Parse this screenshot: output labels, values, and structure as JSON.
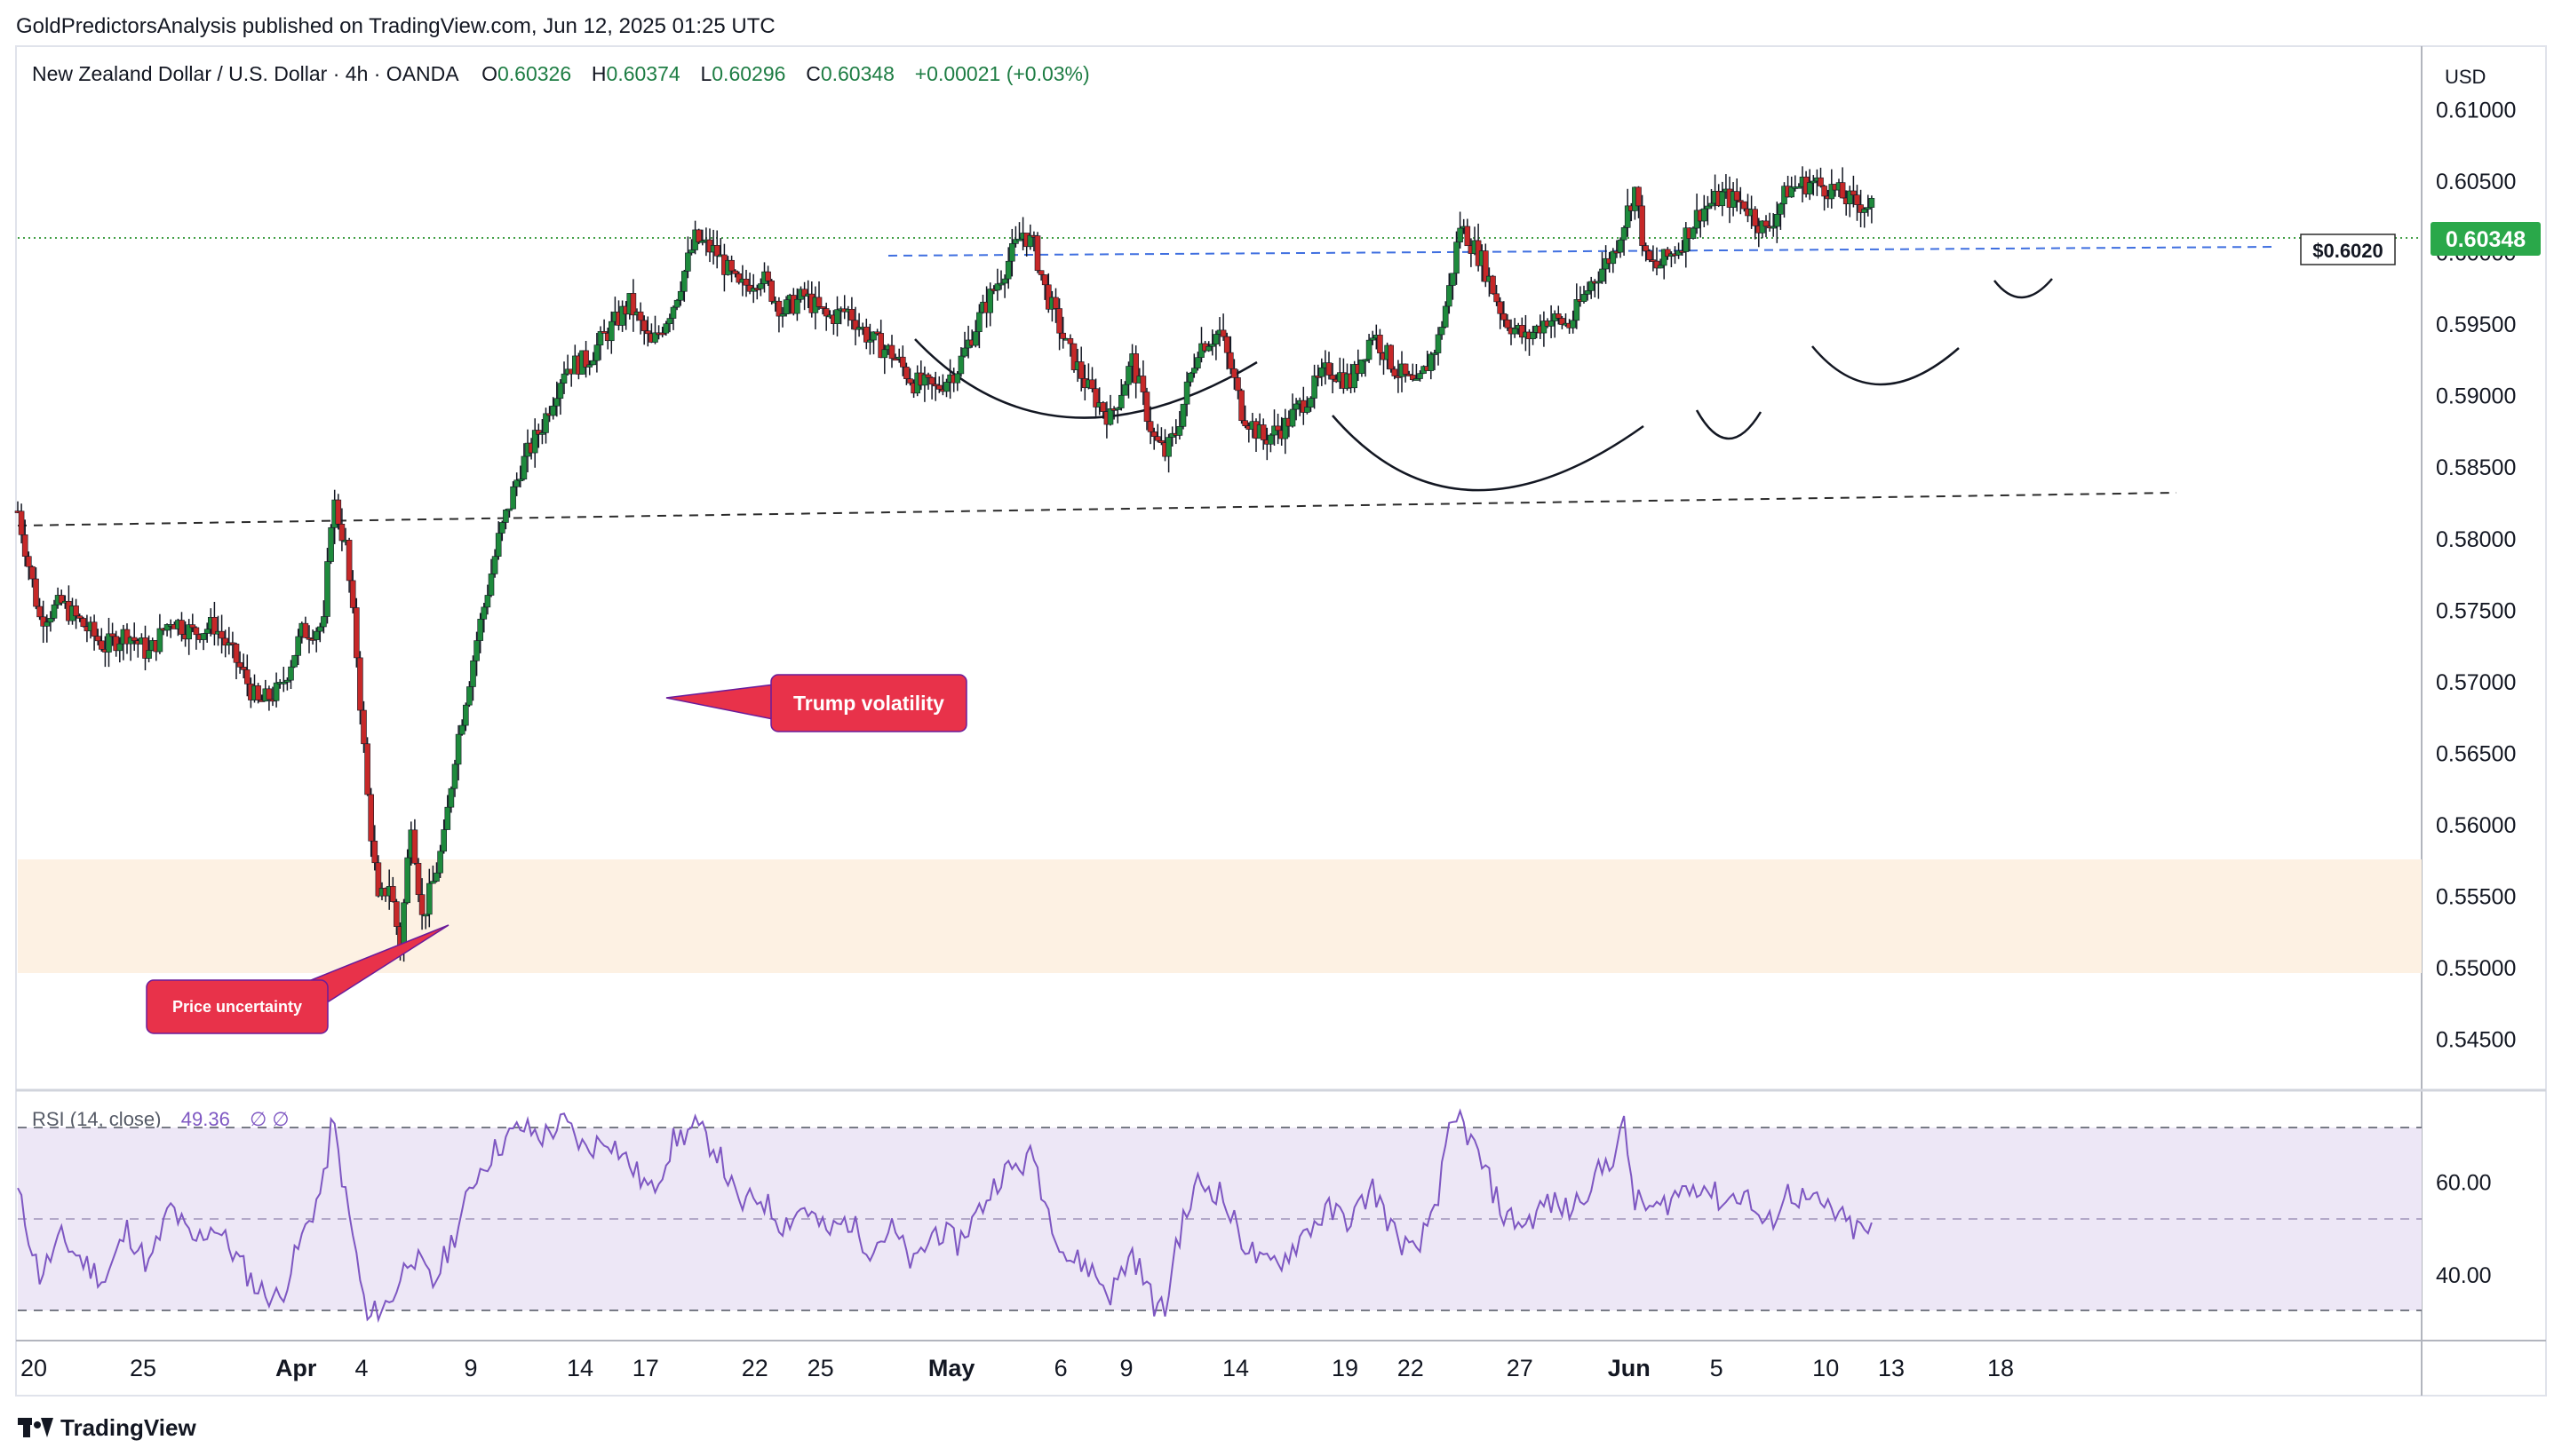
{
  "header": {
    "published": "GoldPredictorsAnalysis published on TradingView.com, Jun 12, 2025 01:25 UTC"
  },
  "footer": {
    "brand": "TradingView"
  },
  "colors": {
    "up": "#26a69a",
    "up_body": "#1e8a3c",
    "down": "#c62828",
    "wick": "#131722",
    "price_badge": "#2aa84a",
    "annotation": "#e8324a",
    "rsi_line": "#7e57c2",
    "rsi_band": "#ede7f6",
    "zone": "#fdf0e0"
  },
  "chart_data": [
    {
      "type": "candlestick",
      "symbol_line": {
        "name": "New Zealand Dollar / U.S. Dollar · 4h · OANDA",
        "o_label": "O",
        "o": "0.60326",
        "h_label": "H",
        "h": "0.60374",
        "l_label": "L",
        "l": "0.60296",
        "c_label": "C",
        "c": "0.60348",
        "change": "+0.00021 (+0.03%)"
      },
      "currency": "USD",
      "last_price": "0.60348",
      "ylim": [
        0.5415,
        0.6145
      ],
      "y_ticks": [
        "0.61000",
        "0.60500",
        "0.60000",
        "0.59500",
        "0.59000",
        "0.58500",
        "0.58000",
        "0.57500",
        "0.57000",
        "0.56500",
        "0.56000",
        "0.55500",
        "0.55000",
        "0.54500"
      ],
      "x_ticks": [
        {
          "label": "20",
          "day": 0
        },
        {
          "label": "25",
          "day": 5
        },
        {
          "label": "Apr",
          "day": 12,
          "bold": true
        },
        {
          "label": "4",
          "day": 15
        },
        {
          "label": "9",
          "day": 20
        },
        {
          "label": "14",
          "day": 25
        },
        {
          "label": "17",
          "day": 28
        },
        {
          "label": "22",
          "day": 33
        },
        {
          "label": "25",
          "day": 36
        },
        {
          "label": "May",
          "day": 42,
          "bold": true
        },
        {
          "label": "6",
          "day": 47
        },
        {
          "label": "9",
          "day": 50
        },
        {
          "label": "14",
          "day": 55
        },
        {
          "label": "19",
          "day": 60
        },
        {
          "label": "22",
          "day": 63
        },
        {
          "label": "27",
          "day": 68
        },
        {
          "label": "Jun",
          "day": 73,
          "bold": true
        },
        {
          "label": "5",
          "day": 77
        },
        {
          "label": "10",
          "day": 82
        },
        {
          "label": "13",
          "day": 85
        },
        {
          "label": "18",
          "day": 90
        }
      ],
      "path": [
        [
          0,
          0.582
        ],
        [
          1,
          0.5745
        ],
        [
          2,
          0.5755
        ],
        [
          3,
          0.574
        ],
        [
          4,
          0.5725
        ],
        [
          5,
          0.5735
        ],
        [
          6,
          0.572
        ],
        [
          7,
          0.5745
        ],
        [
          8,
          0.5735
        ],
        [
          9,
          0.574
        ],
        [
          10,
          0.5715
        ],
        [
          11,
          0.5685
        ],
        [
          12,
          0.5695
        ],
        [
          13,
          0.5735
        ],
        [
          14,
          0.574
        ],
        [
          14.4,
          0.583
        ],
        [
          15,
          0.5795
        ],
        [
          15.5,
          0.572
        ],
        [
          16,
          0.562
        ],
        [
          16.5,
          0.5545
        ],
        [
          17,
          0.556
        ],
        [
          17.5,
          0.5515
        ],
        [
          18,
          0.5605
        ],
        [
          18.5,
          0.5535
        ],
        [
          19,
          0.556
        ],
        [
          19.5,
          0.559
        ],
        [
          20,
          0.565
        ],
        [
          21,
          0.573
        ],
        [
          22,
          0.58
        ],
        [
          23,
          0.585
        ],
        [
          24,
          0.588
        ],
        [
          25,
          0.592
        ],
        [
          26,
          0.5925
        ],
        [
          27,
          0.5945
        ],
        [
          28,
          0.5965
        ],
        [
          29,
          0.5935
        ],
        [
          30,
          0.5965
        ],
        [
          31,
          0.601
        ],
        [
          32,
          0.6
        ],
        [
          33,
          0.5975
        ],
        [
          34,
          0.5985
        ],
        [
          35,
          0.596
        ],
        [
          36,
          0.597
        ],
        [
          37,
          0.5955
        ],
        [
          38,
          0.596
        ],
        [
          39,
          0.594
        ],
        [
          40,
          0.593
        ],
        [
          41,
          0.591
        ],
        [
          42,
          0.5905
        ],
        [
          43,
          0.592
        ],
        [
          44,
          0.5955
        ],
        [
          45,
          0.5985
        ],
        [
          46,
          0.6015
        ],
        [
          46.5,
          0.6005
        ],
        [
          47,
          0.5975
        ],
        [
          48,
          0.5935
        ],
        [
          49,
          0.5905
        ],
        [
          50,
          0.5885
        ],
        [
          51,
          0.5925
        ],
        [
          52,
          0.587
        ],
        [
          52.5,
          0.586
        ],
        [
          53,
          0.5875
        ],
        [
          54,
          0.5935
        ],
        [
          55,
          0.5945
        ],
        [
          55.5,
          0.592
        ],
        [
          56,
          0.589
        ],
        [
          57,
          0.587
        ],
        [
          58,
          0.588
        ],
        [
          59,
          0.59
        ],
        [
          60,
          0.592
        ],
        [
          61,
          0.591
        ],
        [
          62,
          0.5945
        ],
        [
          63,
          0.592
        ],
        [
          64,
          0.5905
        ],
        [
          65,
          0.594
        ],
        [
          65.5,
          0.5975
        ],
        [
          66,
          0.602
        ],
        [
          67,
          0.5995
        ],
        [
          68,
          0.5955
        ],
        [
          69,
          0.594
        ],
        [
          70,
          0.5955
        ],
        [
          71,
          0.595
        ],
        [
          72,
          0.598
        ],
        [
          73,
          0.6
        ],
        [
          74,
          0.6045
        ],
        [
          74.5,
          0.5995
        ],
        [
          75,
          0.599
        ],
        [
          76,
          0.6005
        ],
        [
          77,
          0.603
        ],
        [
          78,
          0.604
        ],
        [
          79,
          0.6035
        ],
        [
          80,
          0.6015
        ],
        [
          81,
          0.6045
        ],
        [
          82,
          0.605
        ],
        [
          83,
          0.6045
        ],
        [
          84,
          0.6035
        ],
        [
          85,
          0.6034
        ]
      ],
      "resistance_label": "$0.6020",
      "annotations": [
        "Trump volatility",
        "Price uncertainty"
      ]
    },
    {
      "type": "line",
      "name": "RSI",
      "label": "RSI (14, close)",
      "value": "49.36",
      "extra": "∅ ∅",
      "ylim": [
        26,
        80
      ],
      "y_ticks": [
        "60.00",
        "40.00"
      ],
      "levels": [
        70,
        50,
        30
      ],
      "path": [
        [
          0,
          58
        ],
        [
          1,
          40
        ],
        [
          2,
          48
        ],
        [
          3,
          43
        ],
        [
          4,
          39
        ],
        [
          5,
          50
        ],
        [
          6,
          42
        ],
        [
          7,
          55
        ],
        [
          8,
          47
        ],
        [
          9,
          51
        ],
        [
          10,
          44
        ],
        [
          11,
          37
        ],
        [
          12,
          35
        ],
        [
          13,
          48
        ],
        [
          14,
          60
        ],
        [
          14.4,
          74
        ],
        [
          15,
          57
        ],
        [
          15.5,
          44
        ],
        [
          16,
          30
        ],
        [
          16.5,
          33
        ],
        [
          17,
          34
        ],
        [
          18,
          45
        ],
        [
          19,
          38
        ],
        [
          20,
          49
        ],
        [
          21,
          62
        ],
        [
          22,
          68
        ],
        [
          23,
          72
        ],
        [
          24,
          70
        ],
        [
          25,
          73
        ],
        [
          26,
          67
        ],
        [
          27,
          70
        ],
        [
          28,
          64
        ],
        [
          29,
          58
        ],
        [
          30,
          69
        ],
        [
          31,
          72
        ],
        [
          32,
          67
        ],
        [
          33,
          55
        ],
        [
          34,
          57
        ],
        [
          35,
          51
        ],
        [
          36,
          55
        ],
        [
          37,
          49
        ],
        [
          38,
          52
        ],
        [
          39,
          46
        ],
        [
          40,
          50
        ],
        [
          41,
          42
        ],
        [
          42,
          50
        ],
        [
          43,
          47
        ],
        [
          44,
          54
        ],
        [
          45,
          62
        ],
        [
          46,
          64
        ],
        [
          46.5,
          66
        ],
        [
          47,
          56
        ],
        [
          48,
          44
        ],
        [
          49,
          42
        ],
        [
          50,
          36
        ],
        [
          51,
          45
        ],
        [
          52,
          34
        ],
        [
          52.5,
          32
        ],
        [
          53,
          47
        ],
        [
          54,
          60
        ],
        [
          55,
          58
        ],
        [
          56,
          48
        ],
        [
          57,
          42
        ],
        [
          58,
          44
        ],
        [
          59,
          50
        ],
        [
          60,
          54
        ],
        [
          61,
          52
        ],
        [
          62,
          59
        ],
        [
          63,
          49
        ],
        [
          64,
          44
        ],
        [
          65,
          58
        ],
        [
          65.5,
          70
        ],
        [
          66,
          74
        ],
        [
          67,
          64
        ],
        [
          68,
          53
        ],
        [
          69,
          51
        ],
        [
          70,
          56
        ],
        [
          71,
          54
        ],
        [
          72,
          60
        ],
        [
          73,
          66
        ],
        [
          73.5,
          72
        ],
        [
          74,
          56
        ],
        [
          75,
          54
        ],
        [
          76,
          58
        ],
        [
          77,
          60
        ],
        [
          78,
          56
        ],
        [
          79,
          58
        ],
        [
          80,
          50
        ],
        [
          81,
          58
        ],
        [
          82,
          56
        ],
        [
          83,
          54
        ],
        [
          84,
          50
        ],
        [
          85,
          49.36
        ]
      ]
    }
  ]
}
